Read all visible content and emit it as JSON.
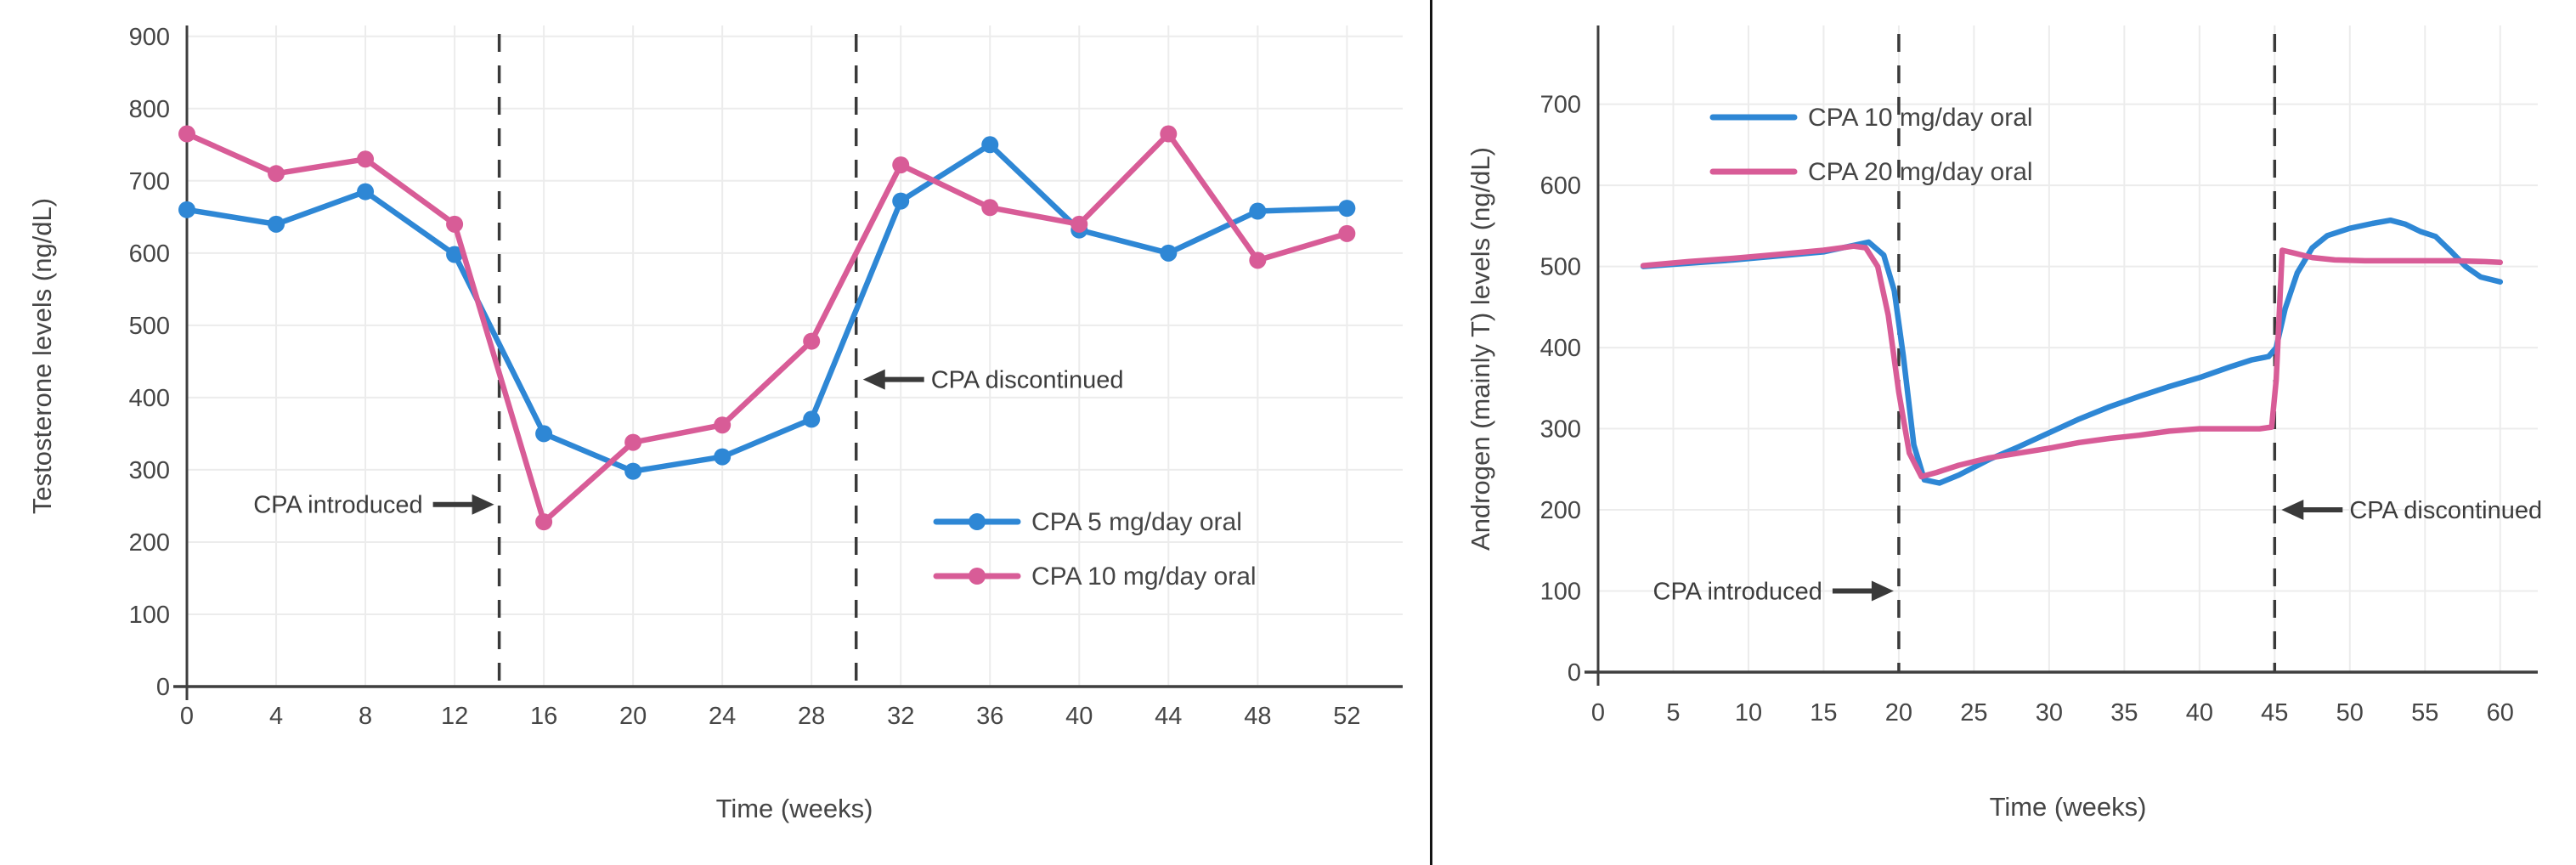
{
  "page": {
    "background": "#ffffff",
    "divider_color": "#141414",
    "grid_color": "#ececec",
    "axis_color": "#3f3f3f",
    "text_color": "#454545",
    "vline_color": "#3a3a3a",
    "series_colors": {
      "blue": "#2e87d5",
      "pink": "#d85c97"
    }
  },
  "chart_data": [
    {
      "type": "line",
      "title": "",
      "xlabel": "Time (weeks)",
      "ylabel": "Testosterone levels (ng/dL)",
      "xlim": [
        0,
        54.5
      ],
      "ylim": [
        0,
        915
      ],
      "xticks": [
        0,
        4,
        8,
        12,
        16,
        20,
        24,
        28,
        32,
        36,
        40,
        44,
        48,
        52
      ],
      "yticks": [
        0,
        100,
        200,
        300,
        400,
        500,
        600,
        700,
        800,
        900
      ],
      "grid": true,
      "legend_position": "inside-lower-right",
      "vlines": [
        {
          "x": 14,
          "label": "CPA introduced",
          "label_side": "left",
          "label_y": 252
        },
        {
          "x": 30,
          "label": "CPA discontinued",
          "label_side": "right",
          "label_y": 425
        }
      ],
      "series": [
        {
          "name": "CPA 5 mg/day oral",
          "color": "#2e87d5",
          "markers": true,
          "x": [
            0,
            4,
            8,
            12,
            16,
            20,
            24,
            28,
            32,
            36,
            40,
            44,
            48,
            52
          ],
          "y": [
            660,
            640,
            685,
            598,
            350,
            298,
            318,
            370,
            672,
            750,
            632,
            600,
            658,
            662
          ]
        },
        {
          "name": "CPA 10 mg/day oral",
          "color": "#d85c97",
          "markers": true,
          "x": [
            0,
            4,
            8,
            12,
            16,
            20,
            24,
            28,
            32,
            36,
            40,
            44,
            48,
            52
          ],
          "y": [
            765,
            710,
            730,
            640,
            228,
            338,
            362,
            478,
            722,
            663,
            640,
            765,
            590,
            627
          ]
        }
      ]
    },
    {
      "type": "line",
      "title": "",
      "xlabel": "Time (weeks)",
      "ylabel": "Androgen (mainly T) levels (ng/dL)",
      "xlim": [
        0,
        62.5
      ],
      "ylim": [
        0,
        797
      ],
      "xticks": [
        0,
        5,
        10,
        15,
        20,
        25,
        30,
        35,
        40,
        45,
        50,
        55,
        60
      ],
      "yticks": [
        0,
        100,
        200,
        300,
        400,
        500,
        600,
        700
      ],
      "grid": true,
      "legend_position": "inside-upper-left",
      "vlines": [
        {
          "x": 20,
          "label": "CPA introduced",
          "label_side": "left",
          "label_y": 100
        },
        {
          "x": 45,
          "label": "CPA discontinued",
          "label_side": "right",
          "label_y": 200
        }
      ],
      "series": [
        {
          "name": "CPA 10 mg/day oral",
          "color": "#2e87d5",
          "markers": false,
          "x": [
            3,
            6,
            9,
            12,
            15,
            17,
            18,
            19,
            19.7,
            20.3,
            21,
            21.7,
            22.7,
            24,
            26,
            28,
            30,
            32,
            34,
            36,
            38,
            40,
            42,
            43.5,
            44.6,
            45.1,
            45.7,
            46.5,
            47.5,
            48.5,
            50,
            51.5,
            52.7,
            53.7,
            54.7,
            55.7,
            56.7,
            57.7,
            58.7,
            60
          ],
          "y": [
            500,
            504,
            508,
            513,
            518,
            526,
            530,
            514,
            470,
            390,
            280,
            237,
            233,
            243,
            262,
            278,
            295,
            312,
            327,
            340,
            352,
            363,
            376,
            385,
            389,
            400,
            448,
            492,
            523,
            538,
            547,
            553,
            557,
            552,
            543,
            537,
            519,
            500,
            487,
            481
          ]
        },
        {
          "name": "CPA 20 mg/day oral",
          "color": "#d85c97",
          "markers": false,
          "x": [
            3,
            6,
            9,
            12,
            15,
            17,
            17.8,
            18.6,
            19.3,
            20,
            20.7,
            21.5,
            22.5,
            24,
            26,
            28,
            30,
            32,
            34,
            36,
            38,
            40,
            42,
            44,
            44.8,
            45.1,
            45.5,
            46.2,
            47.5,
            49,
            51,
            53,
            55,
            57,
            59,
            60
          ],
          "y": [
            501,
            506,
            510,
            515,
            520,
            525,
            523,
            500,
            440,
            345,
            270,
            241,
            246,
            255,
            264,
            270,
            276,
            283,
            288,
            292,
            297,
            300,
            300,
            300,
            302,
            360,
            520,
            517,
            511,
            508,
            507,
            507,
            507,
            507,
            506,
            505
          ]
        }
      ]
    }
  ]
}
